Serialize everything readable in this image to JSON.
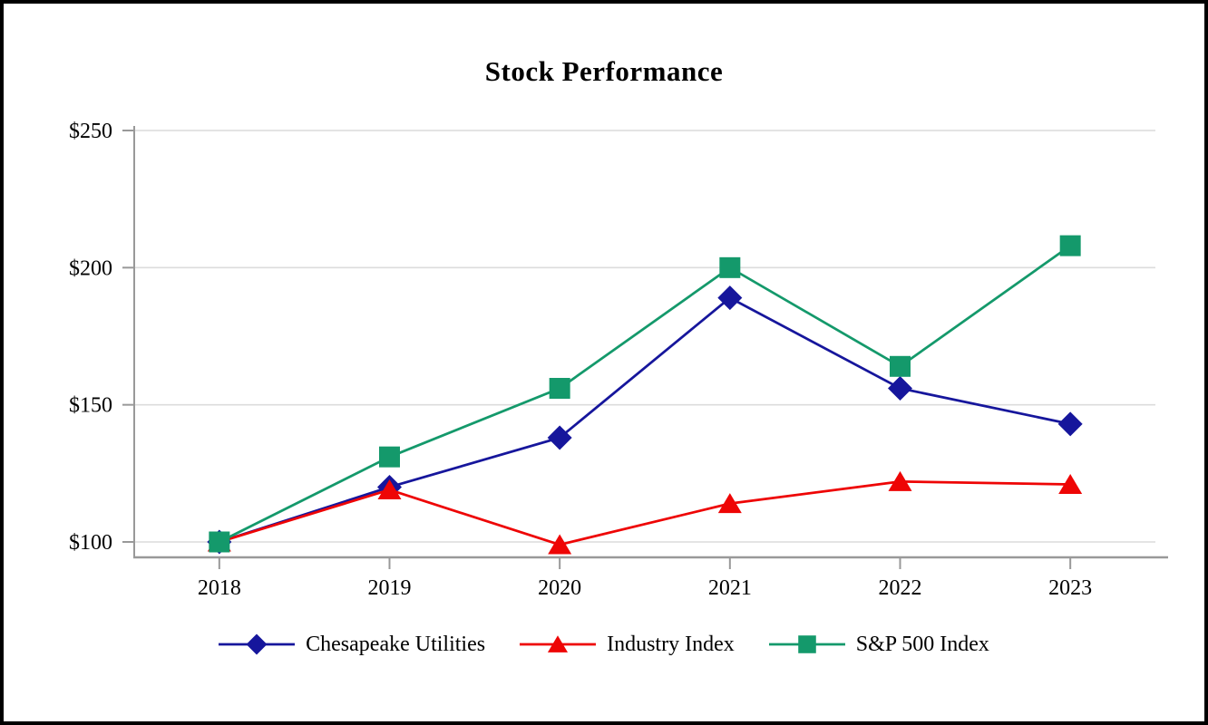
{
  "chart_data": {
    "type": "line",
    "title": "Stock Performance",
    "categories": [
      "2018",
      "2019",
      "2020",
      "2021",
      "2022",
      "2023"
    ],
    "series": [
      {
        "name": "Chesapeake Utilities",
        "marker": "diamond",
        "color": "#16169c",
        "values": [
          100,
          120,
          138,
          189,
          156,
          143
        ]
      },
      {
        "name": "Industry Index",
        "marker": "triangle",
        "color": "#ee0505",
        "values": [
          100,
          119,
          99,
          114,
          122,
          121
        ]
      },
      {
        "name": "S&P 500 Index",
        "marker": "square",
        "color": "#14996b",
        "values": [
          100,
          131,
          156,
          200,
          164,
          208
        ]
      }
    ],
    "ylim": [
      100,
      250
    ],
    "yticks": [
      100,
      150,
      200,
      250
    ],
    "ytick_labels": [
      "$100",
      "$150",
      "$200",
      "$250"
    ],
    "xlabel": "",
    "ylabel": "",
    "grid": "horizontal",
    "legend_position": "bottom",
    "gridline_color": "#dcdcdc",
    "axis_color": "#999999",
    "text_color": "#000000",
    "background_color": "#ffffff",
    "frame_border_color": "#000000"
  }
}
